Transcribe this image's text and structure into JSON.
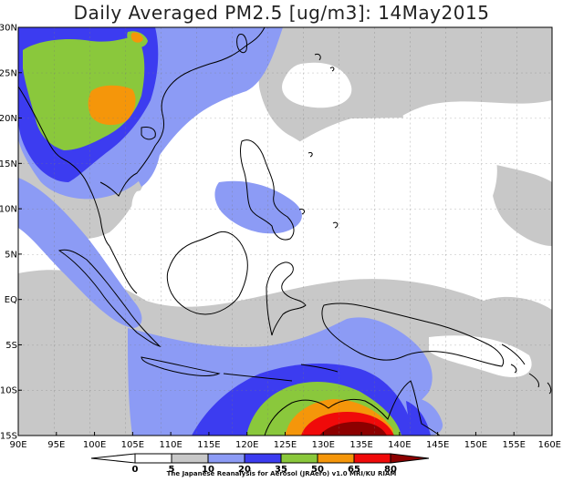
{
  "title": "Daily Averaged PM2.5 [ug/m3]: 14May2015",
  "credit": "The Japanese Reanalysis for Aerosol (JRAero) v1.0 MRI/KU RIAM",
  "lat_labels": [
    "30N",
    "25N",
    "20N",
    "15N",
    "10N",
    "5N",
    "EQ",
    "5S",
    "10S",
    "15S"
  ],
  "lon_labels": [
    "90E",
    "95E",
    "100E",
    "105E",
    "110E",
    "115E",
    "120E",
    "125E",
    "130E",
    "135E",
    "140E",
    "145E",
    "150E",
    "155E",
    "160E"
  ],
  "colorbar": {
    "ticks": [
      "0",
      "5",
      "10",
      "20",
      "35",
      "50",
      "65",
      "80"
    ],
    "colors": {
      "lt5": "#ffffff",
      "5-10": "#ffffff",
      "10-20": "#c8c8c8",
      "20-35": "#8c9bf5",
      "35-50": "#3c3cf0",
      "50-65": "#8ac83c",
      "65-80": "#f5960a",
      "gt80_red": "#f00a0a",
      "gt80_dark": "#8c0000"
    }
  }
}
